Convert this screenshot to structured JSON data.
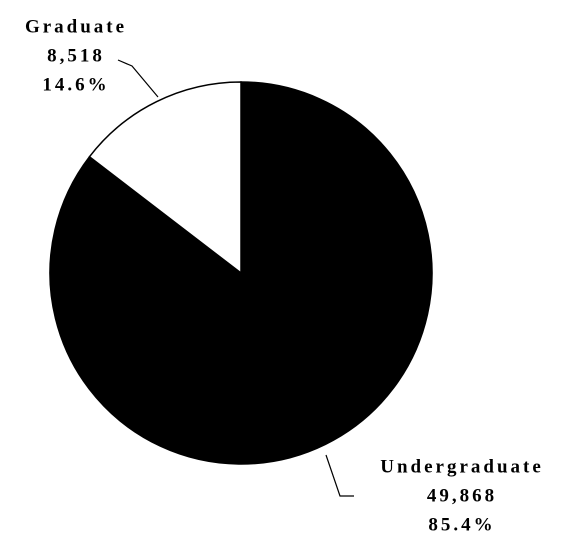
{
  "chart_data": {
    "type": "pie",
    "categories": [
      "Undergraduate",
      "Graduate"
    ],
    "values": [
      49868,
      8518
    ],
    "value_labels": [
      "49,868",
      "8,518"
    ],
    "percents": [
      85.4,
      14.6
    ],
    "percent_labels": [
      "85.4%",
      "14.6%"
    ],
    "colors": [
      "#000000",
      "#ffffff"
    ]
  }
}
